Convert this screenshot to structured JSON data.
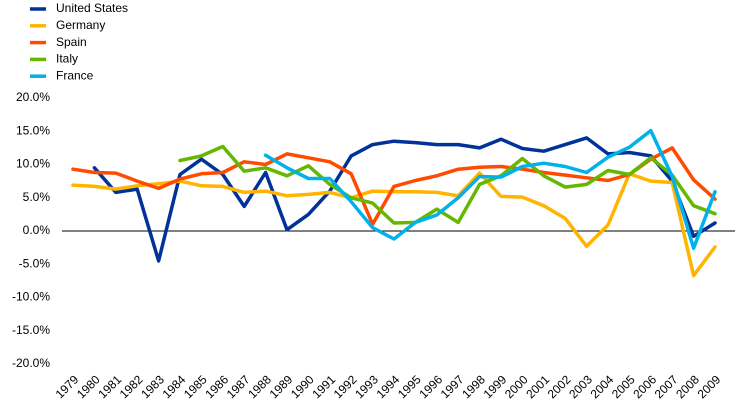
{
  "chart_data": {
    "type": "line",
    "categories": [
      "1979",
      "1980",
      "1981",
      "1982",
      "1983",
      "1984",
      "1985",
      "1986",
      "1987",
      "1988",
      "1989",
      "1990",
      "1991",
      "1992",
      "1993",
      "1994",
      "1995",
      "1996",
      "1997",
      "1998",
      "1999",
      "2000",
      "2001",
      "2002",
      "2003",
      "2004",
      "2005",
      "2006",
      "2007",
      "2008",
      "2009"
    ],
    "series": [
      {
        "name": "United States",
        "color": "#003299",
        "values": [
          null,
          9.5,
          5.8,
          6.3,
          -4.5,
          8.5,
          10.8,
          8.5,
          3.7,
          8.8,
          0.2,
          2.5,
          6.0,
          11.3,
          13.0,
          13.5,
          13.3,
          13.0,
          13.0,
          12.5,
          13.8,
          12.4,
          12.0,
          13.0,
          14.0,
          11.6,
          11.8,
          11.3,
          7.5,
          -0.8,
          1.2
        ]
      },
      {
        "name": "Germany",
        "color": "#ffb400",
        "values": [
          6.9,
          6.7,
          6.3,
          6.8,
          7.1,
          7.5,
          6.8,
          6.7,
          5.8,
          6.0,
          5.3,
          5.5,
          5.8,
          5.0,
          6.0,
          5.9,
          5.9,
          5.8,
          5.3,
          8.7,
          5.2,
          5.1,
          3.8,
          1.9,
          -2.3,
          0.9,
          8.6,
          7.5,
          7.3,
          -6.7,
          -2.4
        ]
      },
      {
        "name": "Spain",
        "color": "#ff4b00",
        "values": [
          9.3,
          8.8,
          8.7,
          7.5,
          6.4,
          7.8,
          8.6,
          8.8,
          10.4,
          10.0,
          11.6,
          11.0,
          10.4,
          8.6,
          1.0,
          6.7,
          7.6,
          8.3,
          9.3,
          9.6,
          9.7,
          9.3,
          8.8,
          8.4,
          8.0,
          7.6,
          8.5,
          10.8,
          12.5,
          7.7,
          4.8
        ]
      },
      {
        "name": "Italy",
        "color": "#65b800",
        "values": [
          null,
          null,
          null,
          null,
          null,
          10.6,
          11.3,
          12.7,
          9.0,
          9.5,
          8.3,
          9.8,
          7.0,
          5.0,
          4.2,
          1.2,
          1.3,
          3.3,
          1.3,
          7.0,
          8.3,
          10.9,
          8.3,
          6.6,
          7.0,
          9.1,
          8.5,
          11.0,
          8.4,
          3.8,
          2.6
        ]
      },
      {
        "name": "France",
        "color": "#00b1ea",
        "values": [
          null,
          null,
          null,
          null,
          null,
          null,
          null,
          null,
          null,
          11.4,
          9.5,
          7.9,
          7.9,
          4.4,
          0.5,
          -1.2,
          1.3,
          2.4,
          5.0,
          8.2,
          8.1,
          9.7,
          10.2,
          9.7,
          8.8,
          11.1,
          12.6,
          15.1,
          8.2,
          -2.6,
          5.9
        ]
      }
    ],
    "ylim": [
      -20,
      20
    ],
    "yticks": [
      {
        "value": -20,
        "label": "-20.0%"
      },
      {
        "value": -15,
        "label": "-15.0%"
      },
      {
        "value": -10,
        "label": "-10.0%"
      },
      {
        "value": -5,
        "label": "-5.0%"
      },
      {
        "value": 0,
        "label": "0.0%"
      },
      {
        "value": 5,
        "label": "5.0%"
      },
      {
        "value": 10,
        "label": "10.0%"
      },
      {
        "value": 15,
        "label": "15.0%"
      },
      {
        "value": 20,
        "label": "20.0%"
      }
    ],
    "grid": false,
    "legend": "top-left"
  }
}
